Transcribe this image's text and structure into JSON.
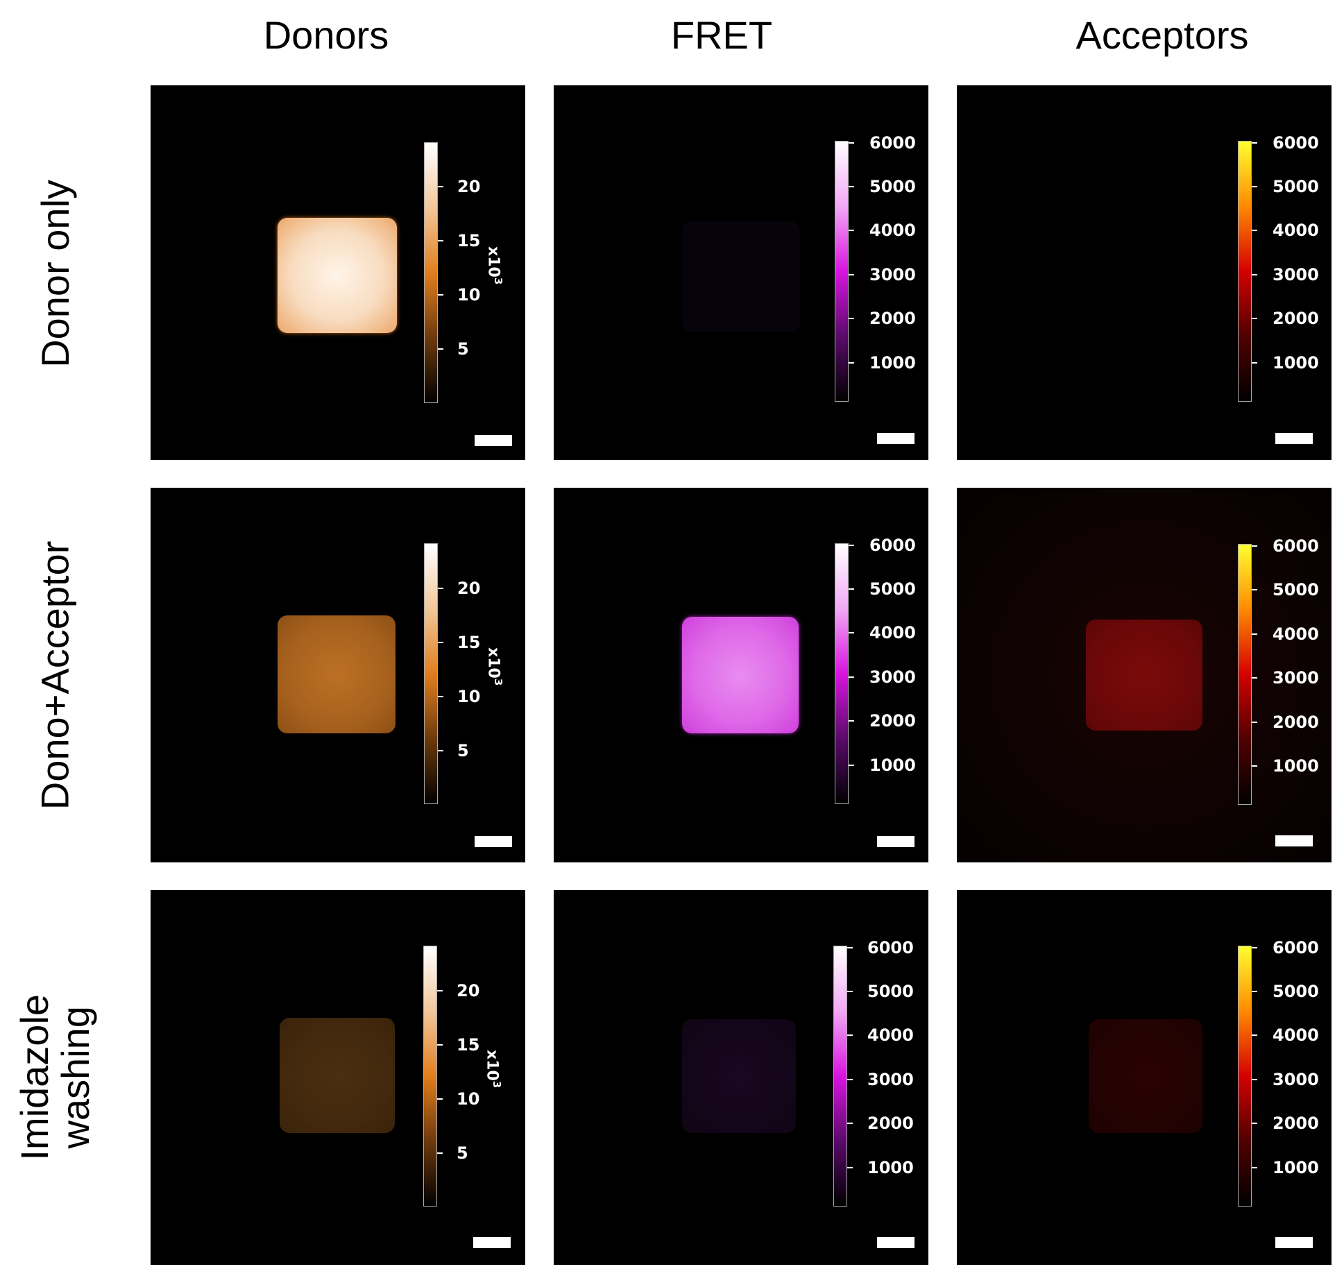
{
  "columns": [
    "Donors",
    "FRET",
    "Acceptors"
  ],
  "rows": [
    "Donor only",
    "Dono+Acceptor",
    "Imidazole washing"
  ],
  "colorbars": {
    "donors": {
      "ticks": [
        "20",
        "15",
        "10",
        "5"
      ],
      "tick_values": [
        20,
        15,
        10,
        5
      ],
      "max": 24,
      "exponent_base": "x10",
      "exponent_power": "3"
    },
    "fret": {
      "ticks": [
        "6000",
        "5000",
        "4000",
        "3000",
        "2000",
        "1000"
      ],
      "tick_values": [
        6000,
        5000,
        4000,
        3000,
        2000,
        1000
      ],
      "max": 6000
    },
    "acceptors": {
      "ticks": [
        "6000",
        "5000",
        "4000",
        "3000",
        "2000",
        "1000"
      ],
      "tick_values": [
        6000,
        5000,
        4000,
        3000,
        2000,
        1000
      ],
      "max": 6000
    }
  },
  "colors": {
    "donor_gradient": [
      "#000000",
      "#6e3a0c",
      "#e07e1e",
      "#f2c79b",
      "#ffffff"
    ],
    "fret_gradient": [
      "#000000",
      "#5a0a6a",
      "#d814e0",
      "#f2a8f5",
      "#ffffff"
    ],
    "acceptor_gradient": [
      "#000000",
      "#500000",
      "#d40000",
      "#ff8a00",
      "#ffff30"
    ]
  }
}
